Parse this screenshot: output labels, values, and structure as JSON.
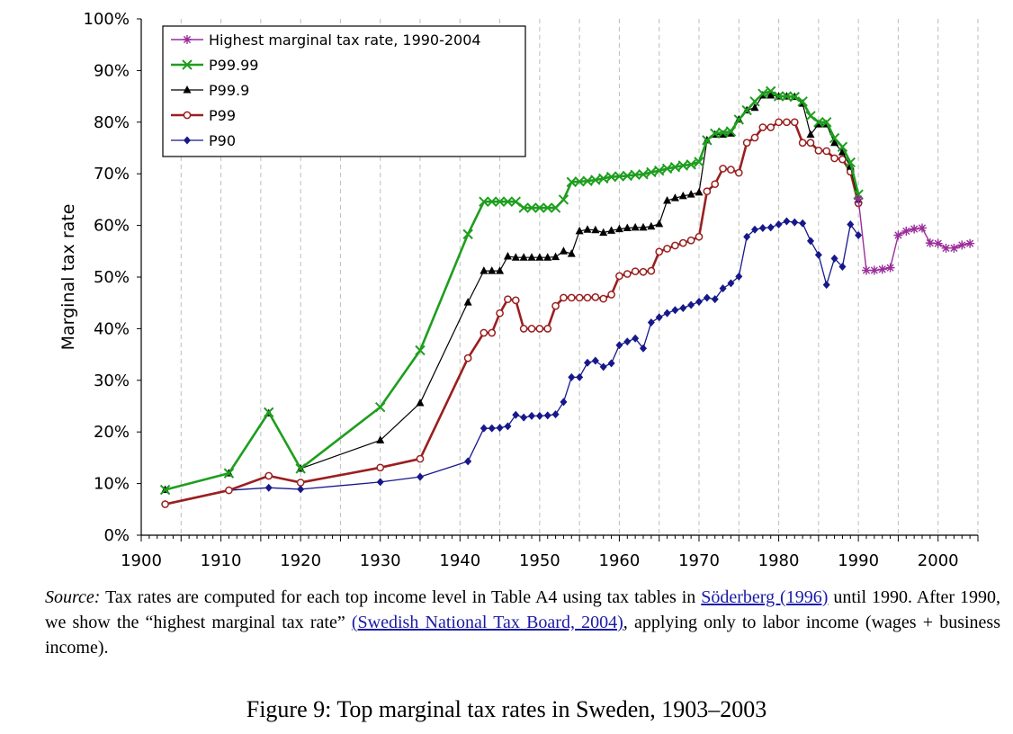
{
  "chart_data": {
    "type": "line",
    "title": "",
    "xlabel": "",
    "ylabel": "Marginal tax rate",
    "xlim": [
      1900,
      2005
    ],
    "ylim": [
      0,
      100
    ],
    "x_ticks": [
      1900,
      1910,
      1920,
      1930,
      1940,
      1950,
      1960,
      1970,
      1980,
      1990,
      2000
    ],
    "y_ticks": [
      "0%",
      "10%",
      "20%",
      "30%",
      "40%",
      "50%",
      "60%",
      "70%",
      "80%",
      "90%",
      "100%"
    ],
    "grid": "vertical dashed",
    "legend_position": "top-left",
    "series": [
      {
        "name": "Highest marginal tax rate, 1990-2004",
        "color": "#9b2d9b",
        "marker": "star",
        "x": [
          1990,
          1991,
          1992,
          1993,
          1994,
          1995,
          1996,
          1997,
          1998,
          1999,
          2000,
          2001,
          2002,
          2003,
          2004
        ],
        "y": [
          65.1,
          51.3,
          51.3,
          51.5,
          51.8,
          58.1,
          58.9,
          59.3,
          59.5,
          56.6,
          56.5,
          55.6,
          55.6,
          56.2,
          56.5
        ]
      },
      {
        "name": "P99.99",
        "color": "#1e9e1e",
        "marker": "x",
        "x": [
          1903,
          1911,
          1916,
          1920,
          1930,
          1935,
          1941,
          1943,
          1944,
          1945,
          1946,
          1947,
          1948,
          1949,
          1950,
          1951,
          1952,
          1953,
          1954,
          1955,
          1956,
          1957,
          1958,
          1959,
          1960,
          1961,
          1962,
          1963,
          1964,
          1965,
          1966,
          1967,
          1968,
          1969,
          1970,
          1971,
          1972,
          1973,
          1974,
          1975,
          1976,
          1977,
          1978,
          1979,
          1980,
          1981,
          1982,
          1983,
          1984,
          1985,
          1986,
          1987,
          1988,
          1989,
          1990
        ],
        "y": [
          8.8,
          12.0,
          23.8,
          12.9,
          24.8,
          35.8,
          58.3,
          64.6,
          64.6,
          64.6,
          64.6,
          64.6,
          63.4,
          63.4,
          63.4,
          63.4,
          63.4,
          65.0,
          68.4,
          68.5,
          68.6,
          68.8,
          69.1,
          69.4,
          69.5,
          69.6,
          69.8,
          69.9,
          70.3,
          70.6,
          71.0,
          71.3,
          71.6,
          71.8,
          72.3,
          76.5,
          77.8,
          78.0,
          78.2,
          80.5,
          82.3,
          84.0,
          85.5,
          86.0,
          85.0,
          85.0,
          84.9,
          84.0,
          81.2,
          80.0,
          80.0,
          76.9,
          75.2,
          72.2,
          66.0
        ]
      },
      {
        "name": "P99.9",
        "color": "#000000",
        "marker": "triangle",
        "x": [
          1903,
          1911,
          1916,
          1920,
          1930,
          1935,
          1941,
          1943,
          1944,
          1945,
          1946,
          1947,
          1948,
          1949,
          1950,
          1951,
          1952,
          1953,
          1954,
          1955,
          1956,
          1957,
          1958,
          1959,
          1960,
          1961,
          1962,
          1963,
          1964,
          1965,
          1966,
          1967,
          1968,
          1969,
          1970,
          1971,
          1972,
          1973,
          1974,
          1975,
          1976,
          1977,
          1978,
          1979,
          1980,
          1981,
          1982,
          1983,
          1984,
          1985,
          1986,
          1987,
          1988,
          1989,
          1990
        ],
        "y": [
          8.8,
          12.0,
          23.6,
          12.9,
          18.4,
          25.6,
          45.1,
          51.2,
          51.2,
          51.2,
          54.0,
          53.8,
          53.8,
          53.8,
          53.8,
          53.8,
          53.9,
          55.0,
          54.5,
          58.9,
          59.2,
          59.1,
          58.6,
          59.0,
          59.3,
          59.5,
          59.6,
          59.6,
          59.8,
          60.3,
          64.8,
          65.3,
          65.7,
          66.0,
          66.4,
          76.5,
          77.6,
          77.6,
          77.8,
          80.5,
          82.3,
          82.8,
          85.2,
          85.2,
          85.0,
          85.0,
          84.9,
          83.6,
          77.6,
          79.6,
          79.6,
          76.0,
          74.2,
          71.4,
          65.0
        ]
      },
      {
        "name": "P99",
        "color": "#9a1f1f",
        "marker": "circle",
        "x": [
          1903,
          1911,
          1916,
          1920,
          1930,
          1935,
          1941,
          1943,
          1944,
          1945,
          1946,
          1947,
          1948,
          1949,
          1950,
          1951,
          1952,
          1953,
          1954,
          1955,
          1956,
          1957,
          1958,
          1959,
          1960,
          1961,
          1962,
          1963,
          1964,
          1965,
          1966,
          1967,
          1968,
          1969,
          1970,
          1971,
          1972,
          1973,
          1974,
          1975,
          1976,
          1977,
          1978,
          1979,
          1980,
          1981,
          1982,
          1983,
          1984,
          1985,
          1986,
          1987,
          1988,
          1989,
          1990
        ],
        "y": [
          6.0,
          8.7,
          11.5,
          10.2,
          13.1,
          14.8,
          34.3,
          39.2,
          39.2,
          43.0,
          45.7,
          45.5,
          40.0,
          40.0,
          40.0,
          40.0,
          44.4,
          46.0,
          46.0,
          46.0,
          46.0,
          46.1,
          45.8,
          46.6,
          50.2,
          50.6,
          51.1,
          51.0,
          51.2,
          54.9,
          55.5,
          56.1,
          56.6,
          57.1,
          57.8,
          66.6,
          68.0,
          71.0,
          70.8,
          70.2,
          76.0,
          77.0,
          79.0,
          79.0,
          80.0,
          80.0,
          80.0,
          76.0,
          76.0,
          74.5,
          74.4,
          73.0,
          72.8,
          70.4,
          64.3
        ]
      },
      {
        "name": "P90",
        "color": "#16188a",
        "marker": "diamond",
        "x": [
          1903,
          1911,
          1916,
          1920,
          1930,
          1935,
          1941,
          1943,
          1944,
          1945,
          1946,
          1947,
          1948,
          1949,
          1950,
          1951,
          1952,
          1953,
          1954,
          1955,
          1956,
          1957,
          1958,
          1959,
          1960,
          1961,
          1962,
          1963,
          1964,
          1965,
          1966,
          1967,
          1968,
          1969,
          1970,
          1971,
          1972,
          1973,
          1974,
          1975,
          1976,
          1977,
          1978,
          1979,
          1980,
          1981,
          1982,
          1983,
          1984,
          1985,
          1986,
          1987,
          1988,
          1989,
          1990
        ],
        "y": [
          6.0,
          8.7,
          9.2,
          8.9,
          10.3,
          11.3,
          14.3,
          20.7,
          20.7,
          20.8,
          21.1,
          23.3,
          22.8,
          23.1,
          23.1,
          23.2,
          23.4,
          25.8,
          30.6,
          30.6,
          33.4,
          33.8,
          32.6,
          33.3,
          36.8,
          37.5,
          38.1,
          36.2,
          41.2,
          42.2,
          43.0,
          43.6,
          44.0,
          44.6,
          45.2,
          46.0,
          45.7,
          47.8,
          48.8,
          50.1,
          57.8,
          59.2,
          59.5,
          59.6,
          60.2,
          60.8,
          60.6,
          60.4,
          57.0,
          54.3,
          48.5,
          53.6,
          52.0,
          60.2,
          58.1
        ]
      }
    ]
  },
  "source": {
    "label": "Source:",
    "text_1": " Tax rates are computed for each top income level in Table A4 using tax tables in ",
    "link_1": "Söderberg (1996)",
    "text_2": " until 1990. After 1990, we show the “highest marginal tax rate” ",
    "link_2": "(Swedish National Tax Board, 2004)",
    "text_3": ", applying only to labor income (wages + business income)."
  },
  "caption": "Figure 9: Top marginal tax rates in Sweden, 1903–2003"
}
